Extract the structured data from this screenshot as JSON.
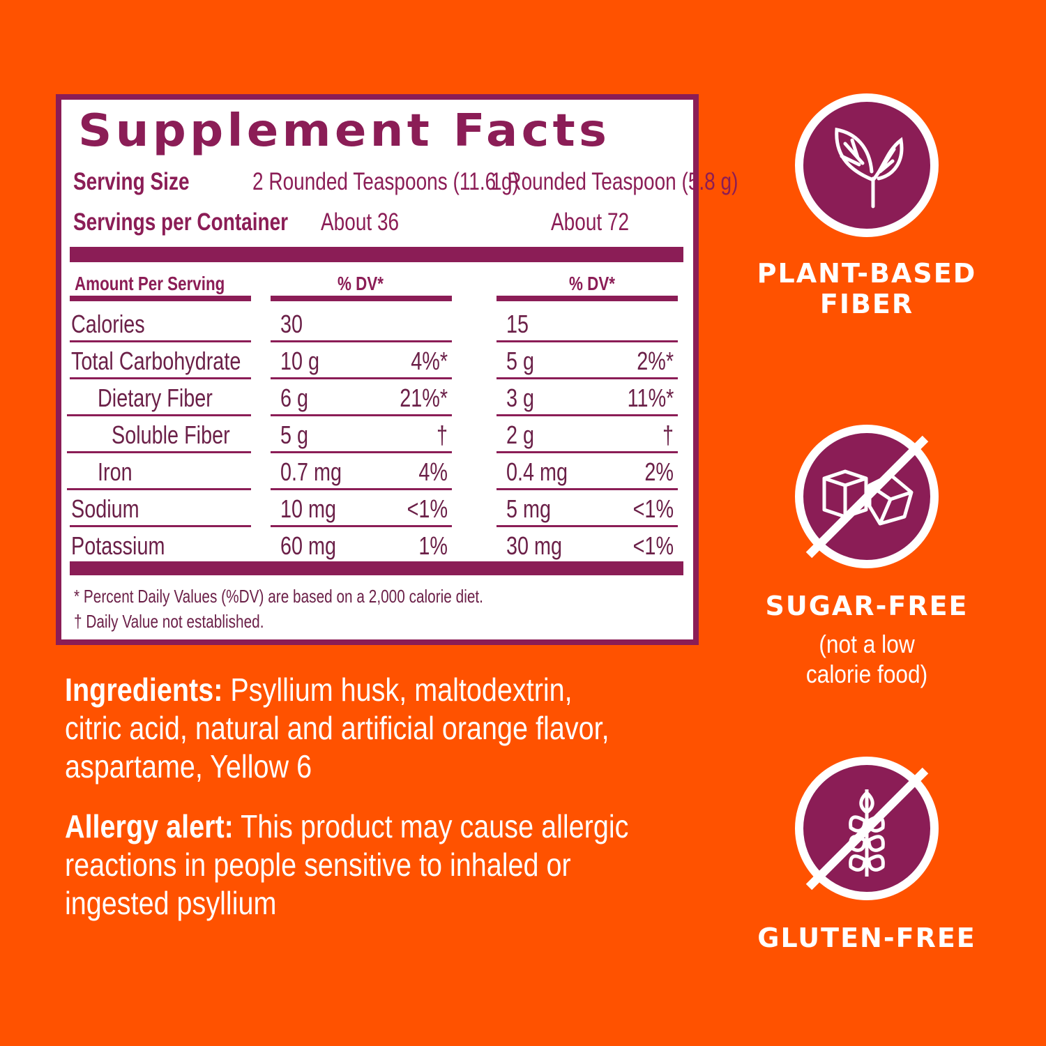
{
  "colors": {
    "background": "#ff5200",
    "accent": "#8b1d56",
    "text": "#ffffff"
  },
  "facts": {
    "title": "Supplement Facts",
    "serving_size_label": "Serving Size",
    "serving_size_1": "2 Rounded Teaspoons (11.6 g)",
    "serving_size_2": "1 Rounded Teaspoon (5.8 g)",
    "servings_label": "Servings per Container",
    "servings_1": "About 36",
    "servings_2": "About 72",
    "amount_header": "Amount Per Serving",
    "dv_header_1": "% DV*",
    "dv_header_2": "% DV*",
    "rows": [
      {
        "name": "Calories",
        "indent": 0,
        "amt1": "30",
        "dv1": "",
        "amt2": "15",
        "dv2": ""
      },
      {
        "name": "Total Carbohydrate",
        "indent": 0,
        "amt1": "10 g",
        "dv1": "4%*",
        "amt2": "5 g",
        "dv2": "2%*"
      },
      {
        "name": "Dietary Fiber",
        "indent": 1,
        "amt1": "6 g",
        "dv1": "21%*",
        "amt2": "3 g",
        "dv2": "11%*"
      },
      {
        "name": "Soluble Fiber",
        "indent": 2,
        "amt1": "5 g",
        "dv1": "†",
        "amt2": "2 g",
        "dv2": "†"
      },
      {
        "name": "Iron",
        "indent": 1,
        "amt1": "0.7 mg",
        "dv1": "4%",
        "amt2": "0.4 mg",
        "dv2": "2%"
      },
      {
        "name": "Sodium",
        "indent": 0,
        "amt1": "10 mg",
        "dv1": "<1%",
        "amt2": "5 mg",
        "dv2": "<1%"
      },
      {
        "name": "Potassium",
        "indent": 0,
        "amt1": "60 mg",
        "dv1": "1%",
        "amt2": "30 mg",
        "dv2": "<1%"
      }
    ],
    "footnote_1": "* Percent Daily Values (%DV) are based on a 2,000 calorie diet.",
    "footnote_2": "† Daily Value not established."
  },
  "ingredients": {
    "label": "Ingredients:",
    "line1": " Psyllium husk, maltodextrin,",
    "line2": "citric acid, natural and artificial orange flavor,",
    "line3": "aspartame, Yellow 6"
  },
  "allergy": {
    "label": "Allergy alert:",
    "line1": " This product may cause allergic",
    "line2": "reactions in people sensitive to inhaled or",
    "line3": "ingested psyllium"
  },
  "badges": [
    {
      "icon": "leaf-icon",
      "line1": "PLANT-BASED",
      "line2": "FIBER"
    },
    {
      "icon": "no-sugar-cubes-icon",
      "line1": "SUGAR-FREE",
      "sub1": "(not a low",
      "sub2": "calorie food)"
    },
    {
      "icon": "no-wheat-icon",
      "line1": "GLUTEN-FREE"
    }
  ]
}
